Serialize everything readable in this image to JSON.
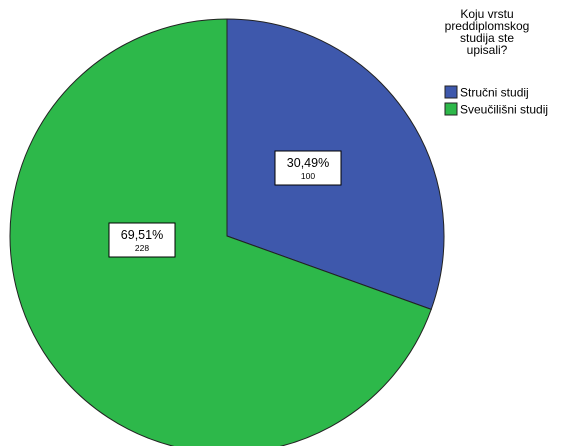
{
  "chart_data": {
    "type": "pie",
    "legend_title": [
      "Koju vrstu",
      "preddiplomskog",
      "studija ste",
      "upisali?"
    ],
    "legend_position": "top-right",
    "slices": [
      {
        "label": "Stručni studij",
        "value": 100,
        "percent_label": "30,49%",
        "count_label": "100",
        "color": "#3e58ac"
      },
      {
        "label": "Sveučilišni studij",
        "value": 228,
        "percent_label": "69,51%",
        "count_label": "228",
        "color": "#2db84a"
      }
    ]
  }
}
